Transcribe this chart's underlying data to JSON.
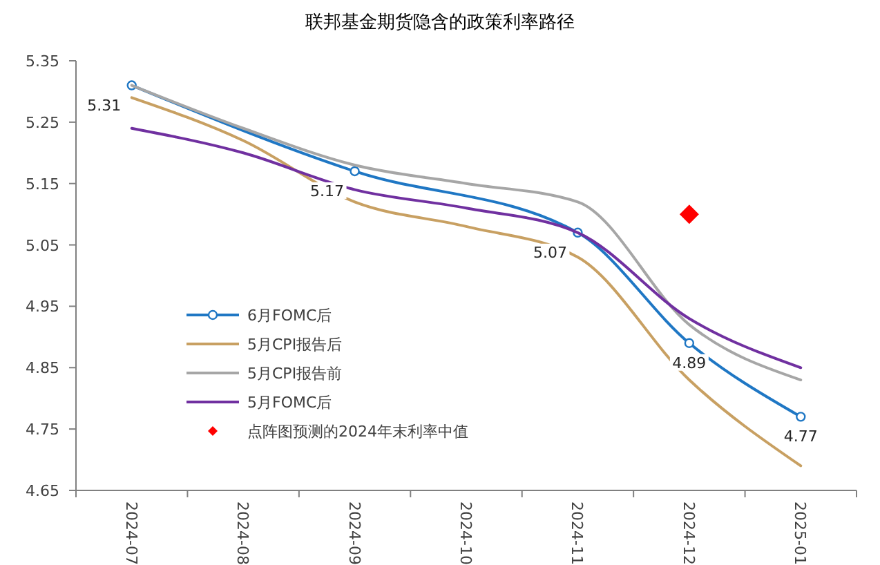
{
  "chart_data": {
    "type": "line",
    "title": "联邦基金期货隐含的政策利率路径",
    "categories": [
      "2024-07",
      "2024-08",
      "2024-09",
      "2024-10",
      "2024-11",
      "2024-12",
      "2025-01"
    ],
    "series": [
      {
        "name": "6月FOMC后",
        "color": "#1f77c4",
        "marker": "circle",
        "values": [
          5.31,
          null,
          5.17,
          null,
          5.07,
          4.89,
          4.77
        ],
        "value_labels": [
          "5.31",
          null,
          "5.17",
          null,
          "5.07",
          "4.89",
          "4.77"
        ]
      },
      {
        "name": "5月CPI报告后",
        "color": "#c8a062",
        "marker": "none",
        "values": [
          5.29,
          5.22,
          5.12,
          5.08,
          5.03,
          4.83,
          4.69
        ]
      },
      {
        "name": "5月CPI报告前",
        "color": "#a6a6a6",
        "marker": "none",
        "values": [
          5.31,
          5.24,
          5.18,
          5.15,
          5.12,
          4.92,
          4.83
        ]
      },
      {
        "name": "5月FOMC后",
        "color": "#7030a0",
        "marker": "none",
        "values": [
          5.24,
          5.2,
          5.14,
          5.11,
          5.07,
          4.93,
          4.85
        ]
      },
      {
        "name": "点阵图预测的2024年末利率中值",
        "type": "scatter",
        "color": "#ff0000",
        "marker": "diamond",
        "values": [
          null,
          null,
          null,
          null,
          null,
          5.1,
          null
        ]
      }
    ],
    "ylim": [
      4.65,
      5.35
    ],
    "yticks": [
      4.65,
      4.75,
      4.85,
      4.95,
      5.05,
      5.15,
      5.25,
      5.35
    ],
    "grid": false,
    "legend": "bottom left"
  }
}
